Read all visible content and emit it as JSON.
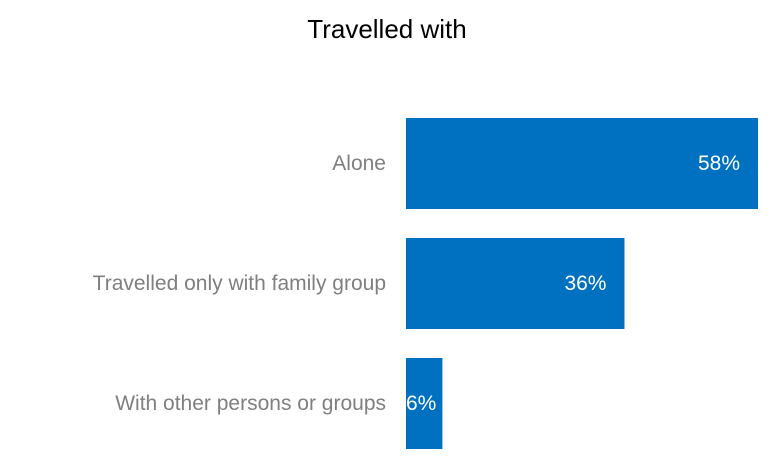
{
  "chart_data": {
    "type": "bar",
    "orientation": "horizontal",
    "title": "Travelled with",
    "categories": [
      "Alone",
      "Travelled only with family group",
      "With other persons or groups"
    ],
    "values": [
      58,
      36,
      6
    ],
    "value_labels": [
      "58%",
      "36%",
      "6%"
    ],
    "unit": "%",
    "xlim": [
      0,
      58
    ],
    "grid": false,
    "legend": "none",
    "bar_color": "#0070c0",
    "category_label_color": "#7f7f7f",
    "value_label_color": "#ffffff",
    "title_color": "#000000"
  }
}
